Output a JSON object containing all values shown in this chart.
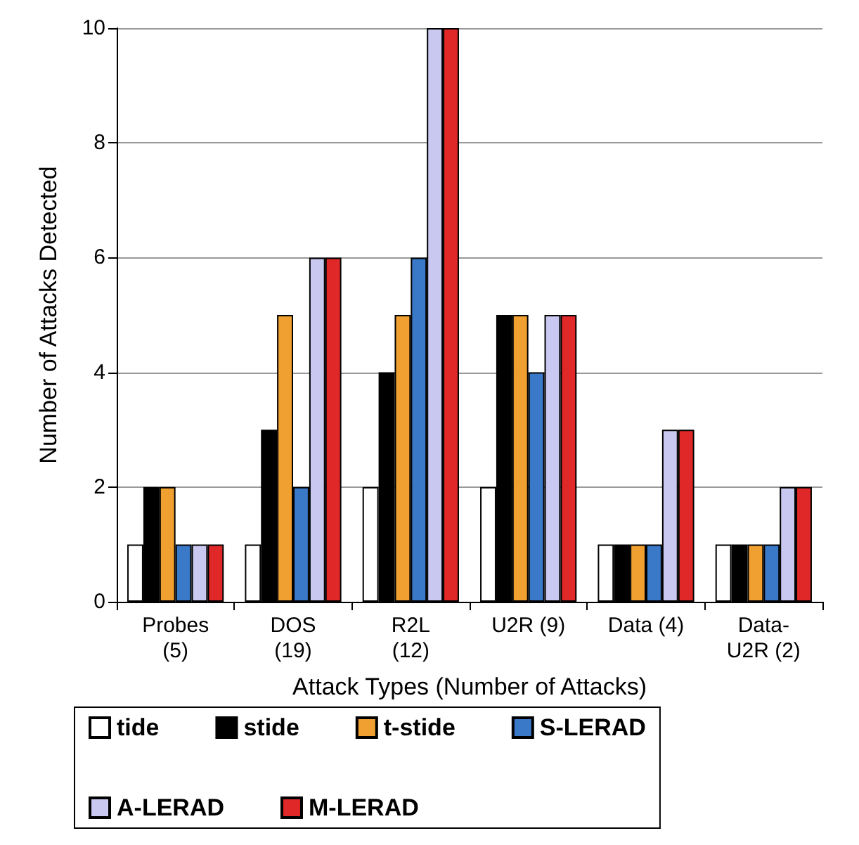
{
  "chart_data": {
    "type": "bar",
    "xlabel": "Attack Types (Number of Attacks)",
    "ylabel": "Number of Attacks Detected",
    "categories": [
      "Probes\n(5)",
      "DOS\n(19)",
      "R2L\n(12)",
      "U2R (9)",
      "Data (4)",
      "Data-\nU2R (2)"
    ],
    "series": [
      {
        "name": "tide",
        "color": "#ffffff",
        "values": [
          1,
          1,
          2,
          2,
          1,
          1
        ]
      },
      {
        "name": "stide",
        "color": "#000000",
        "values": [
          2,
          3,
          4,
          5,
          1,
          1
        ]
      },
      {
        "name": "t-stide",
        "color": "#f0a030",
        "values": [
          2,
          5,
          5,
          5,
          1,
          1
        ]
      },
      {
        "name": "S-LERAD",
        "color": "#3a78c8",
        "values": [
          1,
          2,
          6,
          4,
          1,
          1
        ]
      },
      {
        "name": "A-LERAD",
        "color": "#c8c8f0",
        "values": [
          1,
          6,
          10,
          5,
          3,
          2
        ]
      },
      {
        "name": "M-LERAD",
        "color": "#e02828",
        "values": [
          1,
          6,
          10,
          5,
          3,
          2
        ]
      }
    ],
    "ylim": [
      0,
      10
    ],
    "yticks": [
      0,
      2,
      4,
      6,
      8,
      10
    ],
    "grid": "y",
    "legend": "bottom"
  }
}
